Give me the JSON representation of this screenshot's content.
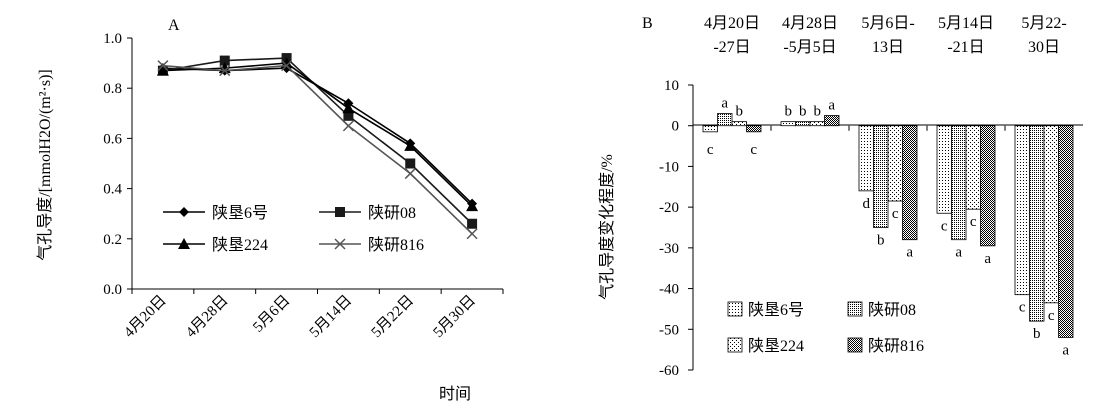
{
  "colors": {
    "ink": "#000000",
    "line_series_2": "#1a1a1a",
    "series_4": "#555555",
    "bar_fill": "#ffffff"
  },
  "chart_data": [
    {
      "panel_label": "A",
      "type": "line",
      "x": [
        "4月20日",
        "4月28日",
        "5月6日",
        "5月14日",
        "5月22日",
        "5月30日"
      ],
      "xlabel": "时间",
      "ylabel": "气孔导度/[mmolH2O/(m²·s)]",
      "ylim": [
        0,
        1.0
      ],
      "yticks": [
        "0.0",
        "0.2",
        "0.4",
        "0.6",
        "0.8",
        "1.0"
      ],
      "grid": false,
      "legend_position": "bottom-center",
      "series": [
        {
          "name": "陕垦6号",
          "marker": "diamond",
          "values": [
            0.88,
            0.87,
            0.88,
            0.74,
            0.58,
            0.34
          ]
        },
        {
          "name": "陕研08",
          "marker": "square",
          "values": [
            0.87,
            0.91,
            0.92,
            0.69,
            0.5,
            0.26
          ]
        },
        {
          "name": "陕垦224",
          "marker": "triangle",
          "values": [
            0.87,
            0.88,
            0.9,
            0.72,
            0.57,
            0.33
          ]
        },
        {
          "name": "陕研816",
          "marker": "x",
          "values": [
            0.89,
            0.87,
            0.89,
            0.65,
            0.46,
            0.22
          ]
        }
      ]
    },
    {
      "panel_label": "B",
      "type": "bar",
      "categories": [
        "4月20日 -27日",
        "4月28日 -5月5日",
        "5月6日- 13日",
        "5月14日 -21日",
        "5月22- 30日"
      ],
      "ylabel": "气孔导度变化程度/%",
      "ylim": [
        -60,
        10
      ],
      "yticks": [
        "10",
        "0",
        "-10",
        "-20",
        "-30",
        "-40",
        "-50",
        "-60"
      ],
      "grid": false,
      "legend_position": "bottom-left",
      "series": [
        {
          "name": "陕垦6号",
          "values": [
            -1.5,
            1.0,
            -16.0,
            -21.5,
            -41.5
          ],
          "labels": [
            "c",
            "b",
            "d",
            "c",
            "c"
          ]
        },
        {
          "name": "陕研08",
          "values": [
            3.0,
            1.0,
            -25.0,
            -28.0,
            -48.0
          ],
          "labels": [
            "a",
            "b",
            "b",
            "a",
            "b"
          ]
        },
        {
          "name": "陕垦224",
          "values": [
            1.0,
            1.0,
            -18.5,
            -20.5,
            -43.5
          ],
          "labels": [
            "b",
            "b",
            "c",
            "c",
            "c"
          ]
        },
        {
          "name": "陕研816",
          "values": [
            -1.5,
            2.5,
            -28.0,
            -29.5,
            -52.0
          ],
          "labels": [
            "c",
            "a",
            "a",
            "a",
            "a"
          ]
        }
      ]
    }
  ]
}
